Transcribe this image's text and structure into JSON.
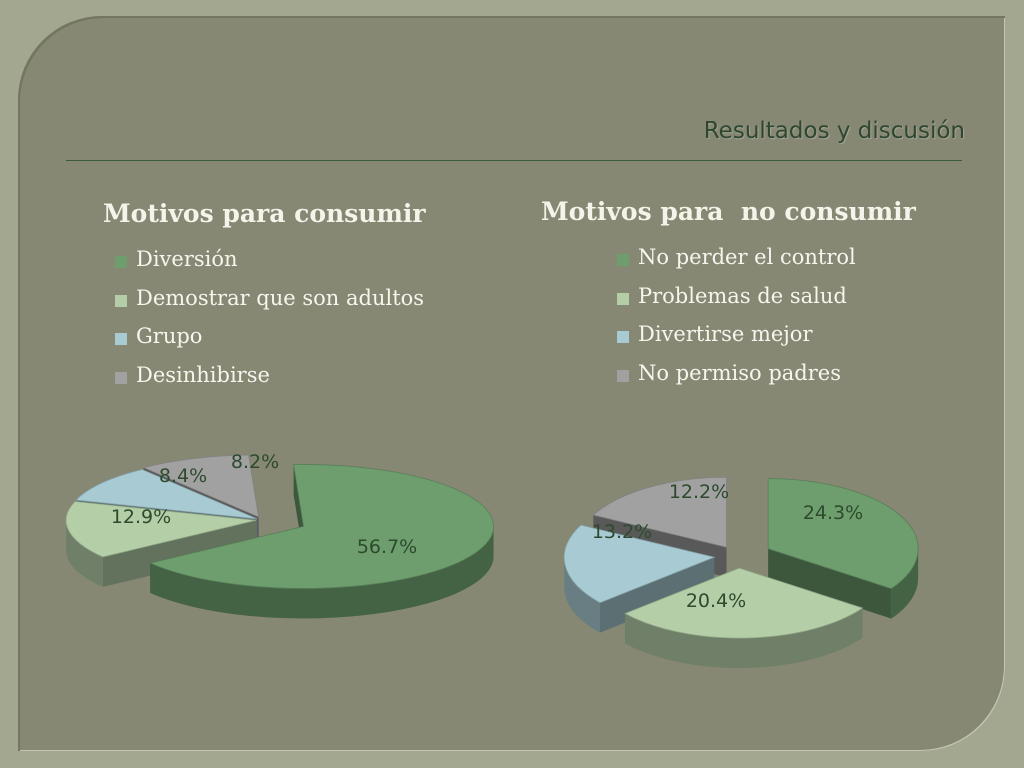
{
  "slide_title": "Resultados y discusión",
  "chart_data": [
    {
      "type": "pie",
      "title": "Motivos para consumir",
      "categories": [
        "Diversión",
        "Demostrar que son adultos",
        "Grupo",
        "Desinhibirse"
      ],
      "values": [
        56.7,
        12.9,
        8.4,
        8.2
      ],
      "data_labels": [
        "56.7%",
        "12.9%",
        "8.4%",
        "8.2%"
      ],
      "colors": [
        "#6e9e6e",
        "#b4cfa8",
        "#a8cbd3",
        "#a1a1a1"
      ],
      "legend": "top",
      "style": "3d-exploded"
    },
    {
      "type": "pie",
      "title": "Motivos para  no consumir",
      "categories": [
        "No perder el control",
        "Problemas de salud",
        "Divertirse mejor",
        "No permiso padres"
      ],
      "values": [
        24.3,
        20.4,
        13.2,
        12.2
      ],
      "data_labels": [
        "24.3%",
        "20.4%",
        "13.2%",
        "12.2%"
      ],
      "colors": [
        "#6e9e6e",
        "#b4cfa8",
        "#a8cbd3",
        "#a1a1a1"
      ],
      "legend": "top",
      "style": "3d-exploded"
    }
  ]
}
